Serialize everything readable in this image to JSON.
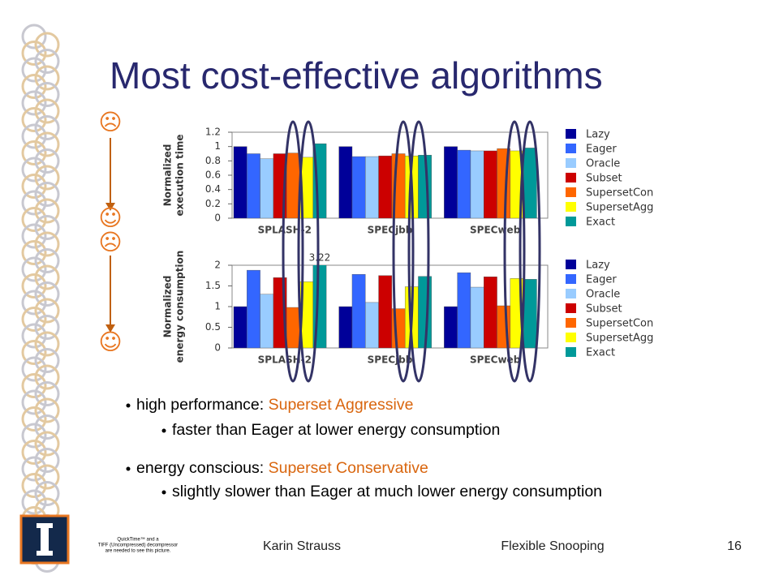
{
  "title": "Most cost-effective algorithms",
  "indicators": [
    "☹",
    "☺",
    "☹",
    "☺"
  ],
  "chart_data": [
    {
      "type": "bar",
      "ylabel": [
        "Normalized",
        "execution time"
      ],
      "categories": [
        "SPLASH-2",
        "SPECjbb",
        "SPECweb"
      ],
      "ylim": [
        0,
        1.2
      ],
      "yticks": [
        0,
        0.2,
        0.4,
        0.6,
        0.8,
        1,
        1.2
      ],
      "grid": false,
      "legend": "right",
      "series": [
        {
          "name": "Lazy",
          "color": "#000099",
          "values": [
            1.0,
            1.0,
            1.0
          ]
        },
        {
          "name": "Eager",
          "color": "#3366ff",
          "values": [
            0.9,
            0.86,
            0.95
          ]
        },
        {
          "name": "Oracle",
          "color": "#99ccff",
          "values": [
            0.83,
            0.86,
            0.94
          ]
        },
        {
          "name": "Subset",
          "color": "#cc0000",
          "values": [
            0.9,
            0.87,
            0.94
          ]
        },
        {
          "name": "SupersetCon",
          "color": "#ff6600",
          "values": [
            0.91,
            0.9,
            0.97
          ]
        },
        {
          "name": "SupersetAgg",
          "color": "#ffff00",
          "values": [
            0.85,
            0.87,
            0.94
          ]
        },
        {
          "name": "Exact",
          "color": "#009999",
          "values": [
            1.04,
            0.88,
            0.98
          ]
        }
      ]
    },
    {
      "type": "bar",
      "ylabel": [
        "Normalized",
        "energy consumption"
      ],
      "categories": [
        "SPLASH-2",
        "SPECjbb",
        "SPECweb"
      ],
      "ylim": [
        0,
        2
      ],
      "yticks": [
        0,
        0.5,
        1,
        1.5,
        2
      ],
      "grid": false,
      "legend": "right",
      "series": [
        {
          "name": "Lazy",
          "color": "#000099",
          "values": [
            1.0,
            1.0,
            1.0
          ]
        },
        {
          "name": "Eager",
          "color": "#3366ff",
          "values": [
            1.88,
            1.78,
            1.82
          ]
        },
        {
          "name": "Oracle",
          "color": "#99ccff",
          "values": [
            1.3,
            1.1,
            1.47
          ]
        },
        {
          "name": "Subset",
          "color": "#cc0000",
          "values": [
            1.7,
            1.75,
            1.72
          ]
        },
        {
          "name": "SupersetCon",
          "color": "#ff6600",
          "values": [
            0.98,
            0.95,
            1.02
          ]
        },
        {
          "name": "SupersetAgg",
          "color": "#ffff00",
          "values": [
            1.6,
            1.48,
            1.68
          ]
        },
        {
          "name": "Exact",
          "color": "#009999",
          "values": [
            3.22,
            1.73,
            1.66
          ],
          "value_labels": [
            "3.22",
            null,
            null
          ]
        }
      ]
    }
  ],
  "bullets": [
    {
      "text": "high performance: ",
      "highlight": "Superset Aggressive",
      "level": 1
    },
    {
      "text": "faster than Eager at lower energy consumption",
      "level": 2
    },
    {
      "text": "energy conscious: ",
      "highlight": "Superset Conservative",
      "level": 1
    },
    {
      "text": "slightly slower than Eager at much lower energy consumption",
      "level": 2
    }
  ],
  "footer": {
    "author": "Karin Strauss",
    "topic": "Flexible Snooping",
    "page": "16",
    "placeholder": [
      "QuickTime™ and a",
      "TIFF (Uncompressed) decompressor",
      "are needed to see this picture."
    ]
  }
}
